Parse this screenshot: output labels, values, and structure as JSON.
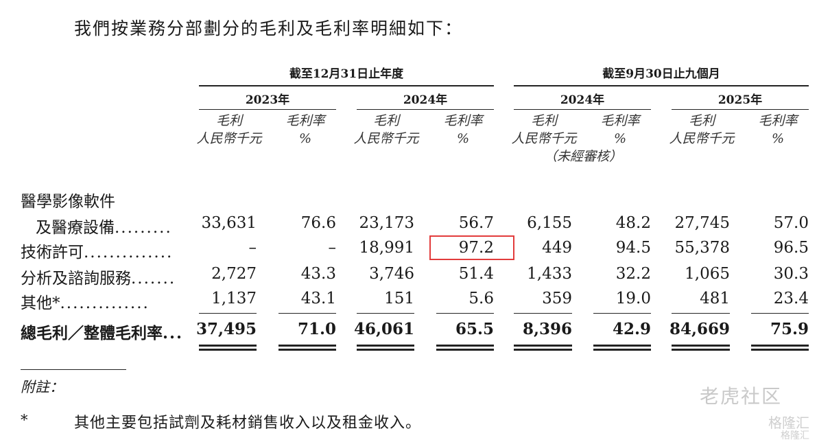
{
  "intro": "我們按業務分部劃分的毛利及毛利率明細如下：",
  "period_headers": [
    "截至12月31日止年度",
    "截至9月30日止九個月"
  ],
  "year_headers": [
    "2023年",
    "2024年",
    "2024年",
    "2025年"
  ],
  "col_head_a": [
    "毛利",
    "毛利率",
    "毛利",
    "毛利率",
    "毛利",
    "毛利率",
    "毛利",
    "毛利率"
  ],
  "col_head_b": [
    "人民幣千元",
    "%",
    "人民幣千元",
    "%",
    "人民幣千元",
    "%",
    "人民幣千元",
    "%"
  ],
  "unaudited": "（未經審核）",
  "rows": [
    {
      "label_line1": "醫學影像軟件",
      "label": "及醫療設備",
      "dots": ".........",
      "values": [
        "33,631",
        "76.6",
        "23,173",
        "56.7",
        "6,155",
        "48.2",
        "27,745",
        "57.0"
      ]
    },
    {
      "label": "技術許可",
      "dots": "..............",
      "values": [
        "–",
        "–",
        "18,991",
        "97.2",
        "449",
        "94.5",
        "55,378",
        "96.5"
      ]
    },
    {
      "label": "分析及諮詢服務",
      "dots": ".......",
      "values": [
        "2,727",
        "43.3",
        "3,746",
        "51.4",
        "1,433",
        "32.2",
        "1,065",
        "30.3"
      ]
    },
    {
      "label": "其他*",
      "dots": "..............",
      "values": [
        "1,137",
        "43.1",
        "151",
        "5.6",
        "359",
        "19.0",
        "481",
        "23.4"
      ]
    },
    {
      "label": "總毛利／整體毛利率",
      "dots": "...",
      "values": [
        "37,495",
        "71.0",
        "46,061",
        "65.5",
        "8,396",
        "42.9",
        "84,669",
        "75.9"
      ]
    }
  ],
  "notes_title": "附註：",
  "note_marker": "*",
  "note_text": "其他主要包括試劑及耗材銷售收入以及租金收入。",
  "watermark": {
    "tiger": "老虎社区",
    "glh": "格隆汇",
    "glh_small": "格隆汇"
  }
}
